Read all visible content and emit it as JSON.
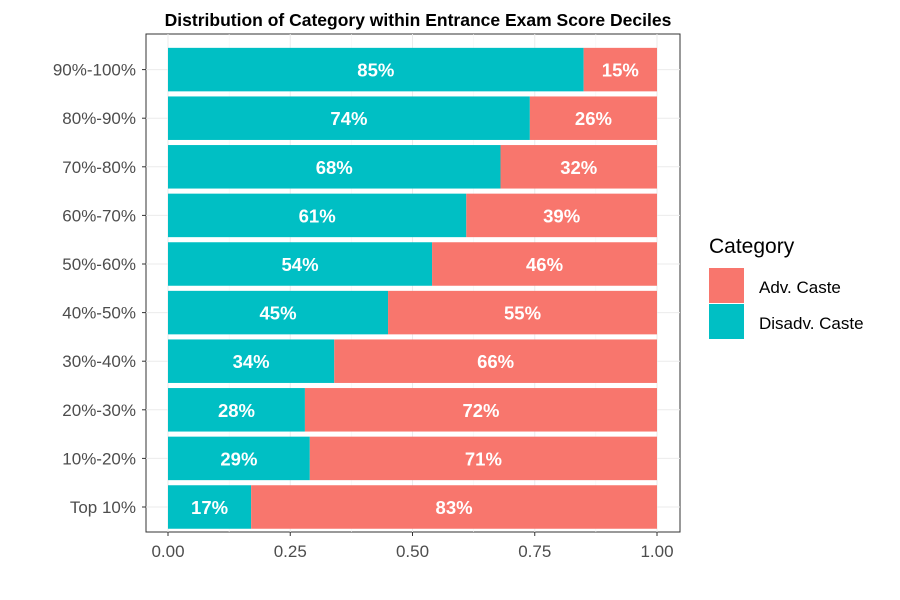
{
  "chart_data": {
    "type": "bar",
    "orientation": "horizontal",
    "stacked": true,
    "title": "Distribution of Category within Entrance Exam Score Deciles",
    "xlabel": "",
    "ylabel": "",
    "xlim": [
      0,
      1
    ],
    "x_ticks": [
      "0.00",
      "0.25",
      "0.50",
      "0.75",
      "1.00"
    ],
    "x_tick_values": [
      0,
      0.25,
      0.5,
      0.75,
      1
    ],
    "grid": true,
    "legend_position": "right",
    "legend_title": "Category",
    "categories": [
      "Top 10%",
      "10%-20%",
      "20%-30%",
      "30%-40%",
      "40%-50%",
      "50%-60%",
      "60%-70%",
      "70%-80%",
      "80%-90%",
      "90%-100%"
    ],
    "series": [
      {
        "name": "Disadv. Caste",
        "color": "#00BFC4",
        "values": [
          0.17,
          0.29,
          0.28,
          0.34,
          0.45,
          0.54,
          0.61,
          0.68,
          0.74,
          0.85
        ],
        "labels": [
          "17%",
          "29%",
          "28%",
          "34%",
          "45%",
          "54%",
          "61%",
          "68%",
          "74%",
          "85%"
        ]
      },
      {
        "name": "Adv. Caste",
        "color": "#F8766D",
        "values": [
          0.83,
          0.71,
          0.72,
          0.66,
          0.55,
          0.46,
          0.39,
          0.32,
          0.26,
          0.15
        ],
        "labels": [
          "83%",
          "71%",
          "72%",
          "66%",
          "55%",
          "46%",
          "39%",
          "32%",
          "26%",
          "15%"
        ]
      }
    ],
    "legend_order": [
      "Adv. Caste",
      "Disadv. Caste"
    ]
  }
}
